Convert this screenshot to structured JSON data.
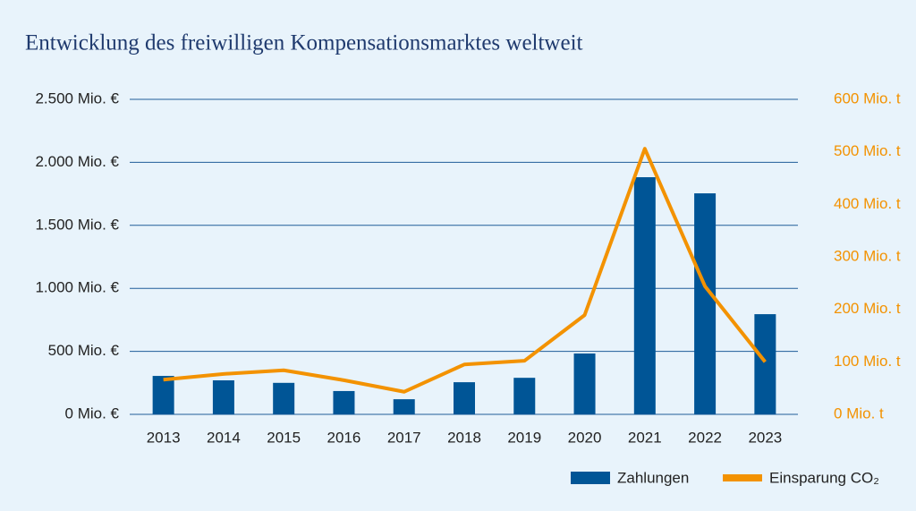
{
  "chart_data": {
    "type": "bar_line",
    "title": "Entwicklung des freiwilligen Kompensationsmarktes weltweit",
    "categories": [
      "2013",
      "2014",
      "2015",
      "2016",
      "2017",
      "2018",
      "2019",
      "2020",
      "2021",
      "2022",
      "2023"
    ],
    "series": [
      {
        "name": "Zahlungen",
        "type": "bar",
        "color": "#005596",
        "values": [
          305,
          270,
          250,
          185,
          120,
          255,
          290,
          483,
          1882,
          1754,
          795
        ]
      },
      {
        "name": "Einsparung CO₂",
        "type": "line",
        "axis": "y2",
        "color": "#f39200",
        "values": [
          66,
          77,
          84,
          65,
          43,
          95,
          102,
          189,
          506,
          244,
          100
        ]
      }
    ],
    "ylim": [
      0,
      2500
    ],
    "yticks": [
      {
        "value": 0,
        "label": "0 Mio. €"
      },
      {
        "value": 500,
        "label": "500 Mio. €"
      },
      {
        "value": 1000,
        "label": "1.000 Mio. €"
      },
      {
        "value": 1500,
        "label": "1.500 Mio. €"
      },
      {
        "value": 2000,
        "label": "2.000 Mio. €"
      },
      {
        "value": 2500,
        "label": "2.500 Mio. €"
      }
    ],
    "y2lim": [
      0,
      600
    ],
    "y2ticks": [
      {
        "value": 0,
        "label": "0 Mio. t"
      },
      {
        "value": 100,
        "label": "100 Mio. t"
      },
      {
        "value": 200,
        "label": "200 Mio. t"
      },
      {
        "value": 300,
        "label": "300 Mio. t"
      },
      {
        "value": 400,
        "label": "400 Mio. t"
      },
      {
        "value": 500,
        "label": "500 Mio. t"
      },
      {
        "value": 600,
        "label": "600 Mio. t"
      }
    ],
    "grid": true,
    "grid_color": "#1f5c99",
    "legend": "bottom-right"
  }
}
